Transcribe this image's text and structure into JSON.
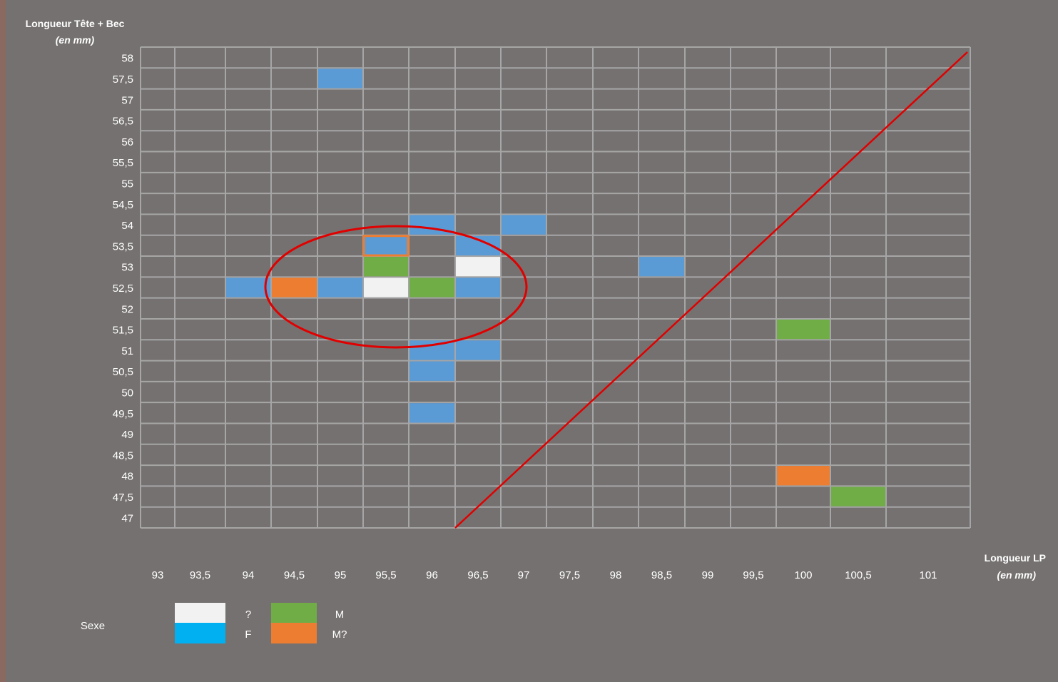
{
  "chart_data": {
    "type": "grid",
    "y_title": "Longueur Tête + Bec",
    "y_unit": "(en mm)",
    "x_title": "Longueur LP",
    "x_unit": "(en mm)",
    "xticks": [
      93,
      {
        "value": 93.5,
        "label": "93,5"
      },
      94,
      {
        "value": 94.5,
        "label": "94,5"
      },
      95,
      {
        "value": 95.5,
        "label": "95,5"
      },
      96,
      {
        "value": 96.5,
        "label": "96,5"
      },
      97,
      {
        "value": 97.5,
        "label": "97,5"
      },
      98,
      {
        "value": 98.5,
        "label": "98,5"
      },
      99,
      {
        "value": 99.5,
        "label": "99,5"
      },
      100,
      {
        "value": 100.5,
        "label": "100,5"
      },
      101
    ],
    "yticks": [
      58,
      {
        "value": 57.5,
        "label": "57,5"
      },
      57,
      {
        "value": 56.5,
        "label": "56,5"
      },
      56,
      {
        "value": 55.5,
        "label": "55,5"
      },
      55,
      {
        "value": 54.5,
        "label": "54,5"
      },
      54,
      {
        "value": 53.5,
        "label": "53,5"
      },
      53,
      {
        "value": 52.5,
        "label": "52,5"
      },
      52,
      {
        "value": 51.5,
        "label": "51,5"
      },
      51,
      {
        "value": 50.5,
        "label": "50,5"
      },
      50,
      {
        "value": 49.5,
        "label": "49,5"
      },
      49,
      {
        "value": 48.5,
        "label": "48,5"
      },
      48,
      {
        "value": 47.5,
        "label": "47,5"
      },
      47
    ],
    "grid": true,
    "legend_title": "Sexe",
    "series": [
      {
        "name": "?",
        "color": "#f2f2f2",
        "legend_color": "#f2f2f2",
        "points": [
          {
            "x": 96.5,
            "y": 53
          },
          {
            "x": 95.5,
            "y": 52.5
          }
        ]
      },
      {
        "name": "F",
        "color": "#5b9bd5",
        "legend_color": "#00b0f0",
        "points": [
          {
            "x": 95,
            "y": 57.5
          },
          {
            "x": 96,
            "y": 54
          },
          {
            "x": 97,
            "y": 54
          },
          {
            "x": 95.5,
            "y": 53.5
          },
          {
            "x": 96.5,
            "y": 53.5
          },
          {
            "x": 98.5,
            "y": 53
          },
          {
            "x": 94,
            "y": 52.5
          },
          {
            "x": 95,
            "y": 52.5
          },
          {
            "x": 96.5,
            "y": 52.5
          },
          {
            "x": 96,
            "y": 51
          },
          {
            "x": 96.5,
            "y": 51
          },
          {
            "x": 96,
            "y": 50.5
          },
          {
            "x": 96,
            "y": 49.5
          }
        ]
      },
      {
        "name": "M",
        "color": "#70ad47",
        "legend_color": "#70ad47",
        "points": [
          {
            "x": 95.5,
            "y": 53
          },
          {
            "x": 96,
            "y": 52.5
          },
          {
            "x": 100,
            "y": 51.5
          },
          {
            "x": 100.5,
            "y": 47.5
          }
        ]
      },
      {
        "name": "M?",
        "color": "#ed7d31",
        "legend_color": "#ed7d31",
        "points": [
          {
            "x": 94.5,
            "y": 52.5
          },
          {
            "x": 100,
            "y": 48
          }
        ]
      }
    ],
    "highlight": {
      "x": 95.5,
      "y": 53.5,
      "color": "#ed7d31"
    }
  }
}
